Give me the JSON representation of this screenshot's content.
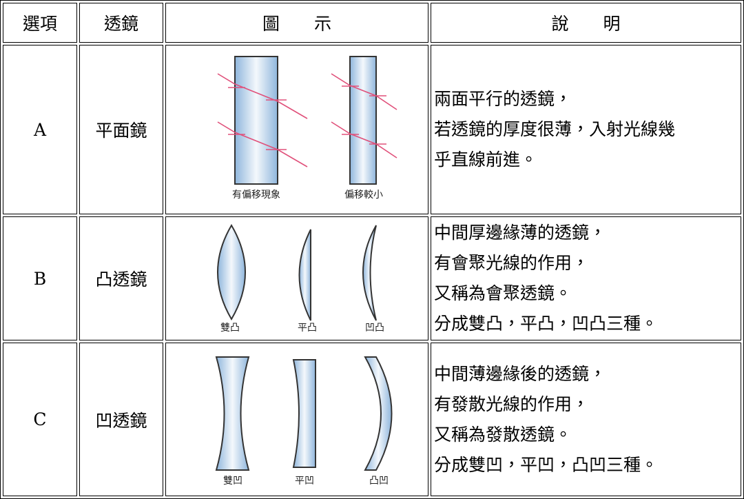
{
  "table": {
    "header": [
      "選項",
      "透鏡",
      "圖　　示",
      "說　　明"
    ],
    "rows": [
      {
        "option": "A",
        "lens": "平面鏡",
        "figure_labels": [
          "有偏移現象",
          "偏移較小"
        ],
        "description": [
          "兩面平行的透鏡，",
          "若透鏡的厚度很薄，入射光線幾",
          "乎直線前進。"
        ]
      },
      {
        "option": "B",
        "lens": "凸透鏡",
        "figure_labels": [
          "雙凸",
          "平凸",
          "凹凸"
        ],
        "description": [
          "中間厚邊緣薄的透鏡，",
          "有會聚光線的作用，",
          "又稱為會聚透鏡。",
          "分成雙凸，平凸，凹凸三種。"
        ]
      },
      {
        "option": "C",
        "lens": "凹透鏡",
        "figure_labels": [
          "雙凹",
          "平凹",
          "凸凹"
        ],
        "description": [
          "中間薄邊緣後的透鏡，",
          "有發散光線的作用，",
          "又稱為發散透鏡。",
          "分成雙凹，平凹，凸凹三種。"
        ]
      }
    ]
  }
}
